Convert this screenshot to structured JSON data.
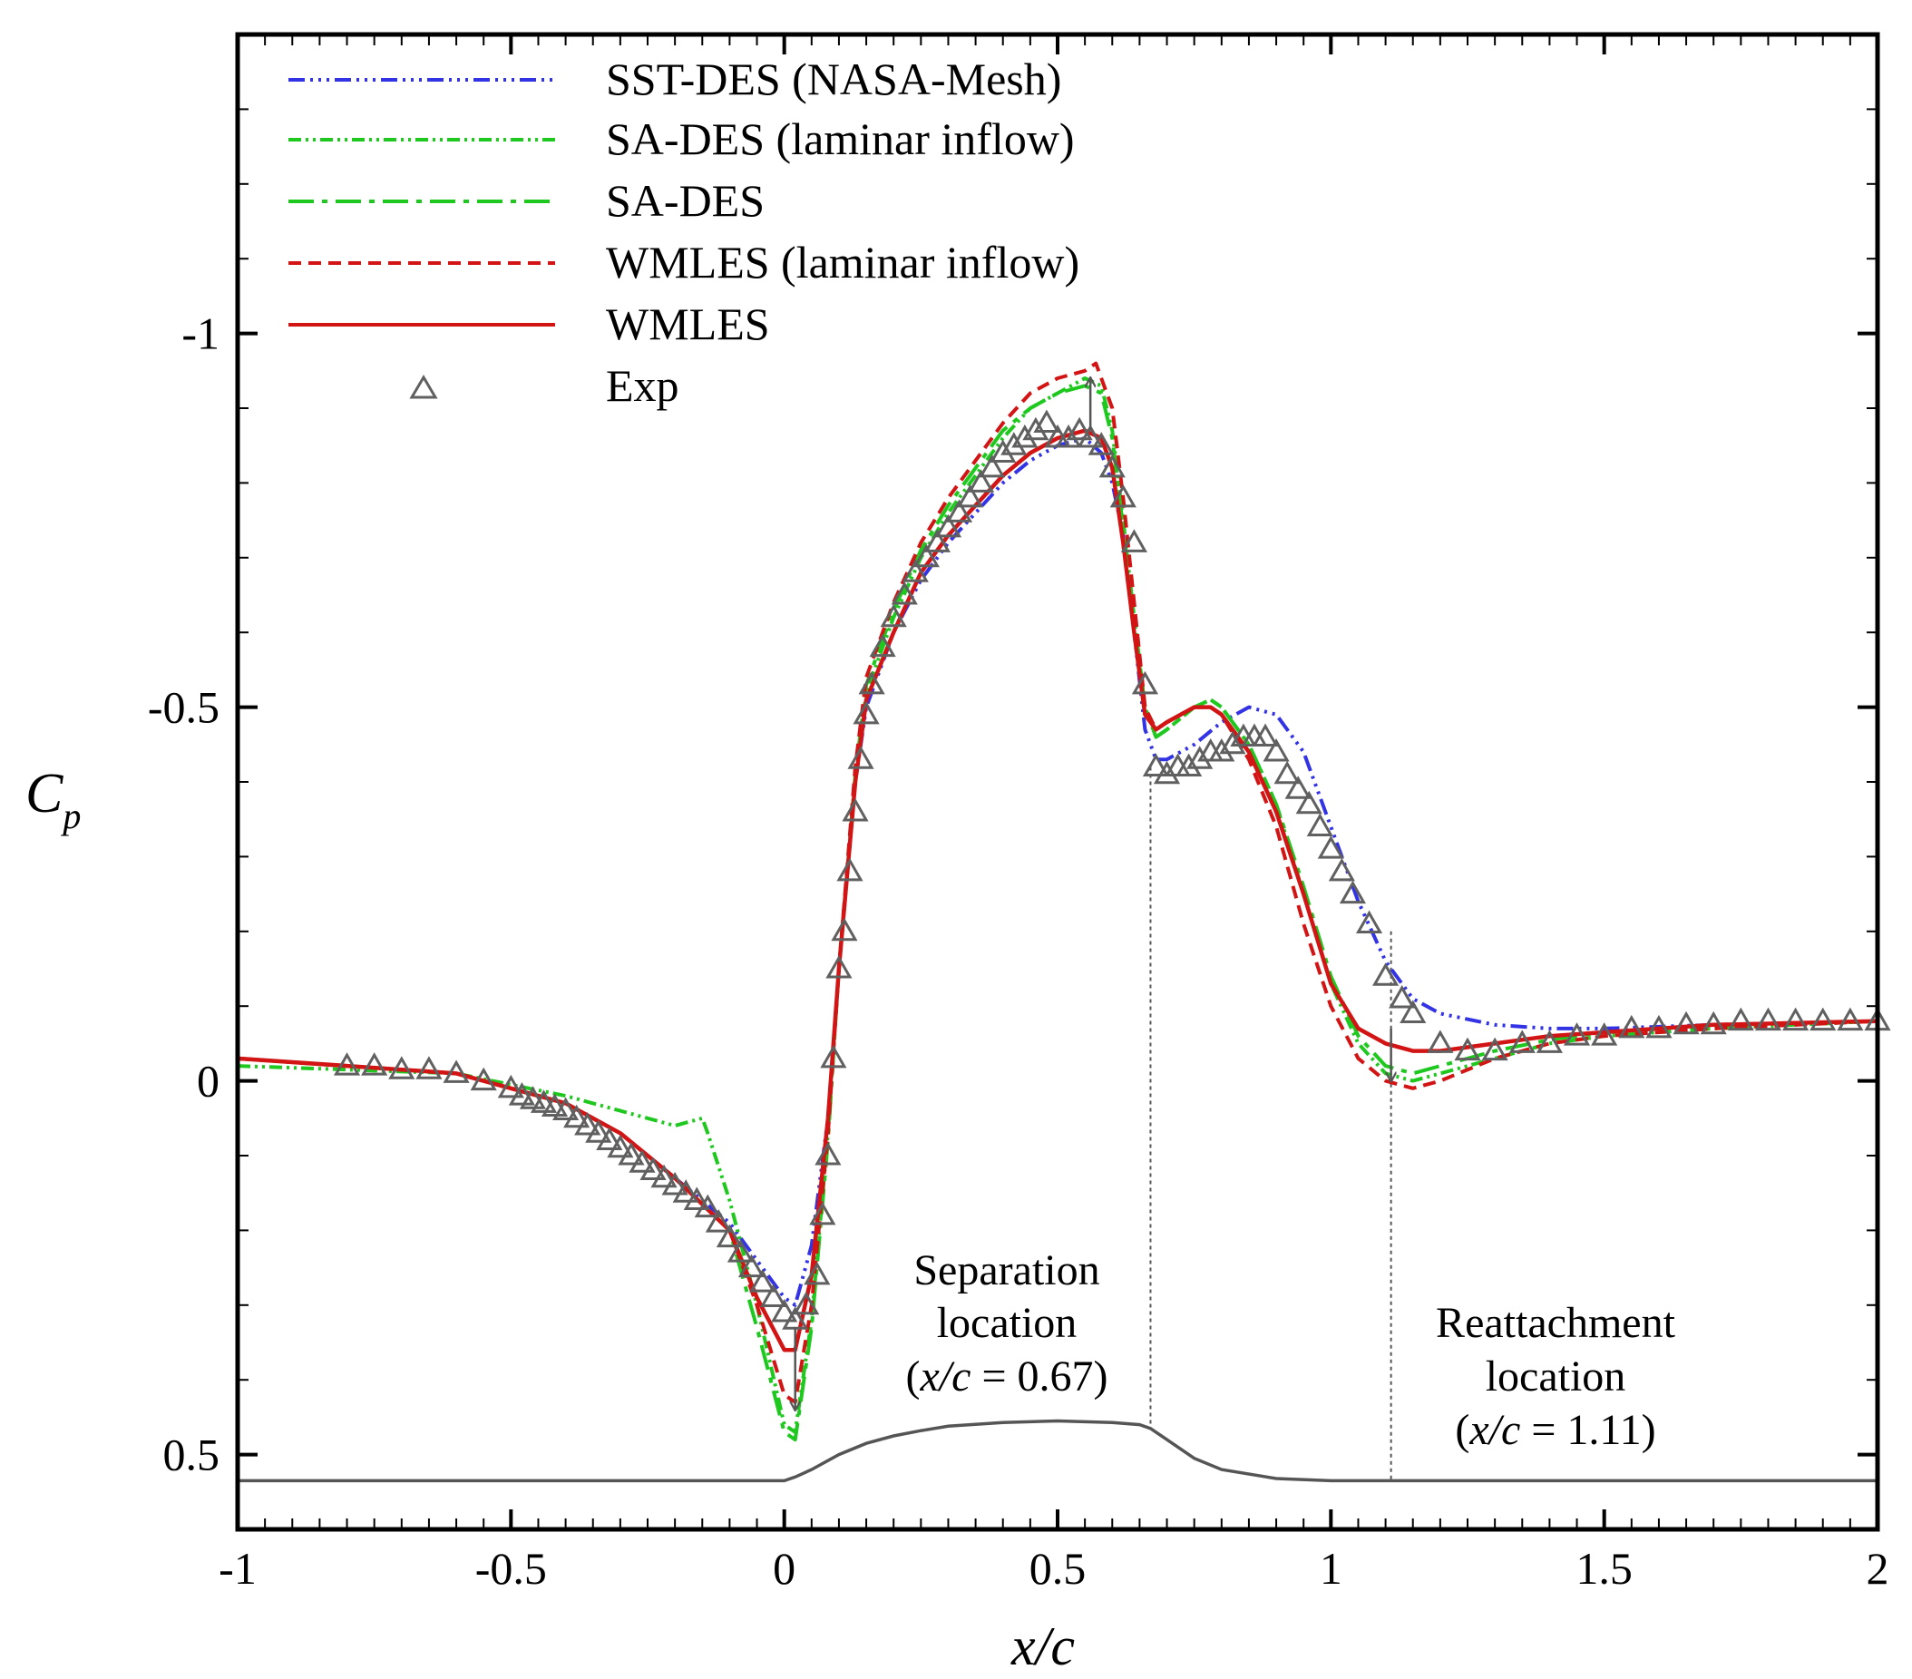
{
  "chart_data": {
    "type": "line",
    "xlabel_italic": "x/c",
    "ylabel_main": "C",
    "ylabel_sub": "p",
    "xlim": [
      -1,
      2
    ],
    "ylim": [
      0.6,
      -1.4
    ],
    "y_inverted": true,
    "grid": false,
    "legend_position": "top-left",
    "x_ticks": [
      -1,
      -0.5,
      0,
      0.5,
      1,
      1.5,
      2
    ],
    "x_tick_labels": [
      "-1",
      "-0.5",
      "0",
      "0.5",
      "1",
      "1.5",
      "2"
    ],
    "y_ticks": [
      -1,
      -0.5,
      0,
      0.5
    ],
    "y_tick_labels": [
      "-1",
      "-0.5",
      "0",
      "0.5"
    ],
    "legend": [
      "SST-DES (NASA-Mesh)",
      "SA-DES (laminar inflow)",
      "SA-DES",
      "WMLES (laminar inflow)",
      "WMLES",
      "Exp"
    ],
    "annotations": {
      "separation": {
        "x": 0.67,
        "lines": [
          "Separation",
          "location"
        ],
        "paren_open": "(",
        "var": "x/c",
        "eq": " = 0.67)"
      },
      "reattachment": {
        "x": 1.11,
        "lines": [
          "Reattachment",
          "location"
        ],
        "paren_open": "(",
        "var": "x/c",
        "eq": " = 1.11)"
      }
    },
    "colors": {
      "sst": "#3333e6",
      "sa_green": "#1ec81e",
      "wmles": "#d21414",
      "exp": "#606060",
      "hump": "#555555"
    },
    "series": [
      {
        "name": "SST-DES (NASA-Mesh)",
        "x": [
          -1.0,
          -0.8,
          -0.6,
          -0.4,
          -0.3,
          -0.2,
          -0.1,
          -0.05,
          0.0,
          0.02,
          0.05,
          0.08,
          0.1,
          0.13,
          0.15,
          0.2,
          0.25,
          0.3,
          0.35,
          0.4,
          0.45,
          0.5,
          0.55,
          0.58,
          0.6,
          0.62,
          0.64,
          0.66,
          0.68,
          0.7,
          0.75,
          0.8,
          0.85,
          0.9,
          0.95,
          1.0,
          1.05,
          1.1,
          1.15,
          1.2,
          1.3,
          1.4,
          1.5,
          1.7,
          2.0
        ],
        "y": [
          -0.03,
          -0.02,
          -0.01,
          0.03,
          0.07,
          0.13,
          0.19,
          0.24,
          0.29,
          0.3,
          0.22,
          0.05,
          -0.15,
          -0.4,
          -0.5,
          -0.6,
          -0.67,
          -0.72,
          -0.76,
          -0.8,
          -0.83,
          -0.85,
          -0.86,
          -0.84,
          -0.8,
          -0.73,
          -0.6,
          -0.47,
          -0.43,
          -0.43,
          -0.45,
          -0.48,
          -0.5,
          -0.49,
          -0.44,
          -0.34,
          -0.24,
          -0.16,
          -0.11,
          -0.09,
          -0.075,
          -0.07,
          -0.07,
          -0.075,
          -0.08
        ]
      },
      {
        "name": "SA-DES (laminar inflow)",
        "x": [
          -1.0,
          -0.8,
          -0.6,
          -0.4,
          -0.3,
          -0.2,
          -0.15,
          -0.14,
          -0.1,
          -0.05,
          0.0,
          0.02,
          0.05,
          0.08,
          0.1,
          0.13,
          0.15,
          0.2,
          0.25,
          0.3,
          0.35,
          0.4,
          0.45,
          0.5,
          0.55,
          0.58,
          0.6,
          0.62,
          0.64,
          0.66,
          0.68,
          0.7,
          0.75,
          0.78,
          0.8,
          0.85,
          0.9,
          0.95,
          1.0,
          1.05,
          1.1,
          1.15,
          1.2,
          1.3,
          1.4,
          1.5,
          1.7,
          2.0
        ],
        "y": [
          -0.02,
          -0.015,
          -0.01,
          0.02,
          0.04,
          0.06,
          0.05,
          0.07,
          0.16,
          0.3,
          0.46,
          0.47,
          0.32,
          0.07,
          -0.15,
          -0.4,
          -0.52,
          -0.62,
          -0.7,
          -0.76,
          -0.81,
          -0.86,
          -0.9,
          -0.92,
          -0.94,
          -0.93,
          -0.87,
          -0.75,
          -0.62,
          -0.5,
          -0.46,
          -0.47,
          -0.5,
          -0.51,
          -0.5,
          -0.45,
          -0.37,
          -0.25,
          -0.13,
          -0.05,
          -0.01,
          0.0,
          -0.01,
          -0.03,
          -0.05,
          -0.06,
          -0.07,
          -0.08
        ]
      },
      {
        "name": "SA-DES",
        "x": [
          -1.0,
          -0.8,
          -0.6,
          -0.4,
          -0.3,
          -0.2,
          -0.1,
          -0.05,
          0.0,
          0.02,
          0.05,
          0.08,
          0.1,
          0.13,
          0.15,
          0.2,
          0.25,
          0.3,
          0.35,
          0.4,
          0.45,
          0.5,
          0.55,
          0.58,
          0.6,
          0.62,
          0.64,
          0.66,
          0.68,
          0.7,
          0.75,
          0.78,
          0.8,
          0.85,
          0.9,
          0.95,
          1.0,
          1.05,
          1.1,
          1.15,
          1.2,
          1.3,
          1.4,
          1.5,
          1.7,
          2.0
        ],
        "y": [
          -0.03,
          -0.02,
          -0.01,
          0.03,
          0.07,
          0.13,
          0.2,
          0.33,
          0.47,
          0.48,
          0.33,
          0.08,
          -0.15,
          -0.41,
          -0.53,
          -0.63,
          -0.71,
          -0.77,
          -0.82,
          -0.87,
          -0.9,
          -0.92,
          -0.93,
          -0.92,
          -0.86,
          -0.74,
          -0.62,
          -0.5,
          -0.46,
          -0.47,
          -0.5,
          -0.51,
          -0.5,
          -0.45,
          -0.37,
          -0.26,
          -0.14,
          -0.06,
          -0.02,
          -0.01,
          -0.02,
          -0.04,
          -0.055,
          -0.065,
          -0.075,
          -0.08
        ]
      },
      {
        "name": "WMLES (laminar inflow)",
        "x": [
          -1.0,
          -0.8,
          -0.6,
          -0.4,
          -0.3,
          -0.2,
          -0.1,
          -0.05,
          0.0,
          0.02,
          0.05,
          0.08,
          0.1,
          0.13,
          0.15,
          0.2,
          0.25,
          0.3,
          0.35,
          0.4,
          0.45,
          0.5,
          0.55,
          0.57,
          0.6,
          0.62,
          0.64,
          0.66,
          0.68,
          0.7,
          0.75,
          0.78,
          0.8,
          0.85,
          0.9,
          0.95,
          1.0,
          1.05,
          1.1,
          1.15,
          1.2,
          1.3,
          1.4,
          1.5,
          1.7,
          2.0
        ],
        "y": [
          -0.03,
          -0.02,
          -0.01,
          0.03,
          0.07,
          0.13,
          0.2,
          0.3,
          0.42,
          0.43,
          0.3,
          0.07,
          -0.15,
          -0.42,
          -0.54,
          -0.64,
          -0.72,
          -0.78,
          -0.83,
          -0.88,
          -0.92,
          -0.94,
          -0.95,
          -0.96,
          -0.9,
          -0.78,
          -0.64,
          -0.5,
          -0.47,
          -0.48,
          -0.5,
          -0.5,
          -0.49,
          -0.43,
          -0.34,
          -0.21,
          -0.1,
          -0.03,
          0.0,
          0.01,
          0.0,
          -0.03,
          -0.05,
          -0.06,
          -0.07,
          -0.08
        ]
      },
      {
        "name": "WMLES",
        "x": [
          -1.0,
          -0.8,
          -0.6,
          -0.4,
          -0.3,
          -0.2,
          -0.1,
          -0.05,
          0.0,
          0.02,
          0.05,
          0.08,
          0.1,
          0.13,
          0.15,
          0.2,
          0.25,
          0.3,
          0.35,
          0.4,
          0.45,
          0.5,
          0.55,
          0.58,
          0.6,
          0.62,
          0.64,
          0.66,
          0.68,
          0.7,
          0.75,
          0.78,
          0.8,
          0.85,
          0.9,
          0.95,
          1.0,
          1.05,
          1.1,
          1.15,
          1.2,
          1.3,
          1.4,
          1.5,
          1.7,
          2.0
        ],
        "y": [
          -0.03,
          -0.02,
          -0.01,
          0.03,
          0.07,
          0.13,
          0.2,
          0.29,
          0.36,
          0.36,
          0.26,
          0.05,
          -0.15,
          -0.4,
          -0.51,
          -0.6,
          -0.68,
          -0.73,
          -0.77,
          -0.81,
          -0.84,
          -0.86,
          -0.87,
          -0.86,
          -0.82,
          -0.72,
          -0.6,
          -0.49,
          -0.47,
          -0.48,
          -0.5,
          -0.5,
          -0.49,
          -0.44,
          -0.36,
          -0.25,
          -0.13,
          -0.07,
          -0.05,
          -0.04,
          -0.04,
          -0.05,
          -0.06,
          -0.065,
          -0.075,
          -0.08
        ]
      },
      {
        "name": "Exp",
        "x": [
          -0.8,
          -0.75,
          -0.7,
          -0.65,
          -0.6,
          -0.55,
          -0.5,
          -0.48,
          -0.46,
          -0.44,
          -0.42,
          -0.4,
          -0.38,
          -0.36,
          -0.34,
          -0.32,
          -0.3,
          -0.28,
          -0.26,
          -0.24,
          -0.22,
          -0.2,
          -0.18,
          -0.16,
          -0.14,
          -0.12,
          -0.1,
          -0.08,
          -0.06,
          -0.04,
          -0.02,
          0.0,
          0.02,
          0.04,
          0.06,
          0.07,
          0.08,
          0.09,
          0.1,
          0.11,
          0.12,
          0.13,
          0.14,
          0.15,
          0.16,
          0.18,
          0.2,
          0.22,
          0.24,
          0.26,
          0.28,
          0.3,
          0.32,
          0.34,
          0.36,
          0.38,
          0.4,
          0.42,
          0.44,
          0.46,
          0.48,
          0.5,
          0.52,
          0.54,
          0.56,
          0.58,
          0.6,
          0.62,
          0.64,
          0.66,
          0.68,
          0.7,
          0.72,
          0.74,
          0.76,
          0.78,
          0.8,
          0.82,
          0.84,
          0.86,
          0.88,
          0.9,
          0.92,
          0.94,
          0.96,
          0.98,
          1.0,
          1.02,
          1.04,
          1.07,
          1.1,
          1.13,
          1.15,
          1.2,
          1.25,
          1.3,
          1.35,
          1.4,
          1.45,
          1.5,
          1.55,
          1.6,
          1.65,
          1.7,
          1.75,
          1.8,
          1.85,
          1.9,
          1.95,
          2.0
        ],
        "y": [
          -0.02,
          -0.02,
          -0.015,
          -0.015,
          -0.01,
          0.0,
          0.01,
          0.02,
          0.025,
          0.03,
          0.035,
          0.04,
          0.05,
          0.06,
          0.07,
          0.08,
          0.09,
          0.1,
          0.11,
          0.12,
          0.13,
          0.14,
          0.15,
          0.16,
          0.17,
          0.19,
          0.21,
          0.23,
          0.25,
          0.27,
          0.29,
          0.31,
          0.32,
          0.3,
          0.26,
          0.18,
          0.1,
          -0.03,
          -0.15,
          -0.2,
          -0.28,
          -0.36,
          -0.43,
          -0.49,
          -0.53,
          -0.58,
          -0.62,
          -0.65,
          -0.68,
          -0.7,
          -0.72,
          -0.74,
          -0.76,
          -0.78,
          -0.8,
          -0.82,
          -0.84,
          -0.85,
          -0.86,
          -0.87,
          -0.88,
          -0.86,
          -0.86,
          -0.87,
          -0.86,
          -0.85,
          -0.82,
          -0.78,
          -0.72,
          -0.53,
          -0.42,
          -0.41,
          -0.42,
          -0.42,
          -0.43,
          -0.44,
          -0.44,
          -0.45,
          -0.46,
          -0.46,
          -0.46,
          -0.44,
          -0.41,
          -0.39,
          -0.37,
          -0.34,
          -0.31,
          -0.28,
          -0.25,
          -0.21,
          -0.14,
          -0.11,
          -0.09,
          -0.05,
          -0.04,
          -0.04,
          -0.05,
          -0.05,
          -0.06,
          -0.06,
          -0.07,
          -0.07,
          -0.075,
          -0.075,
          -0.08,
          -0.08,
          -0.08,
          -0.08,
          -0.08,
          -0.08
        ]
      },
      {
        "name": "hump",
        "x": [
          -1.0,
          0.0,
          0.02,
          0.05,
          0.1,
          0.15,
          0.2,
          0.25,
          0.3,
          0.4,
          0.5,
          0.6,
          0.65,
          0.67,
          0.7,
          0.75,
          0.8,
          0.9,
          1.0,
          1.1,
          2.0
        ],
        "y": [
          0.535,
          0.535,
          0.53,
          0.52,
          0.5,
          0.485,
          0.475,
          0.468,
          0.462,
          0.457,
          0.455,
          0.457,
          0.46,
          0.465,
          0.48,
          0.505,
          0.52,
          0.532,
          0.535,
          0.535,
          0.535
        ]
      }
    ]
  }
}
